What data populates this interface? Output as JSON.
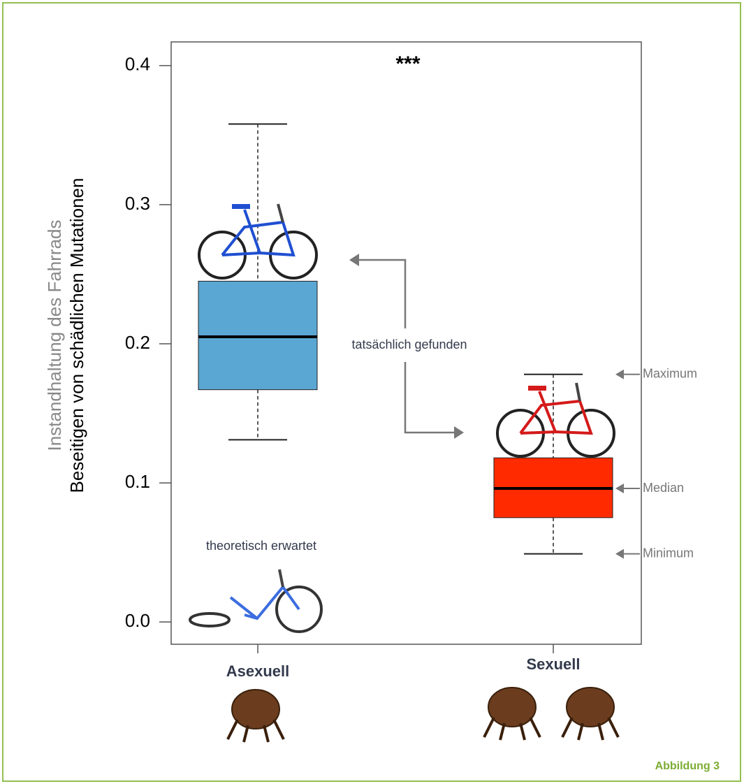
{
  "chart_data": {
    "type": "boxplot",
    "ylabel_lines": [
      "Instandhaltung des Fahrrads",
      "Beseitigen von schädlichen Mutationen"
    ],
    "categories": [
      "Asexuell",
      "Sexuell"
    ],
    "boxes": [
      {
        "min": 0.131,
        "q1": 0.167,
        "median": 0.205,
        "q3": 0.245,
        "max": 0.358,
        "color": "#5ba7d3"
      },
      {
        "min": 0.049,
        "q1": 0.075,
        "median": 0.096,
        "q3": 0.118,
        "max": 0.178,
        "color": "#ff2a00"
      }
    ],
    "ylim": [
      -0.016,
      0.417
    ],
    "yticks": [
      {
        "value": 0,
        "label": "0.0"
      },
      0.1,
      0.2,
      0.3,
      0.4
    ],
    "annotations": {
      "significance": "***",
      "found": "tatsächlich gefunden",
      "expected": "theoretisch erwartet"
    },
    "key_labels": {
      "max": "Maximum",
      "median": "Median",
      "min": "Minimum"
    }
  },
  "caption": "Abbildung 3"
}
